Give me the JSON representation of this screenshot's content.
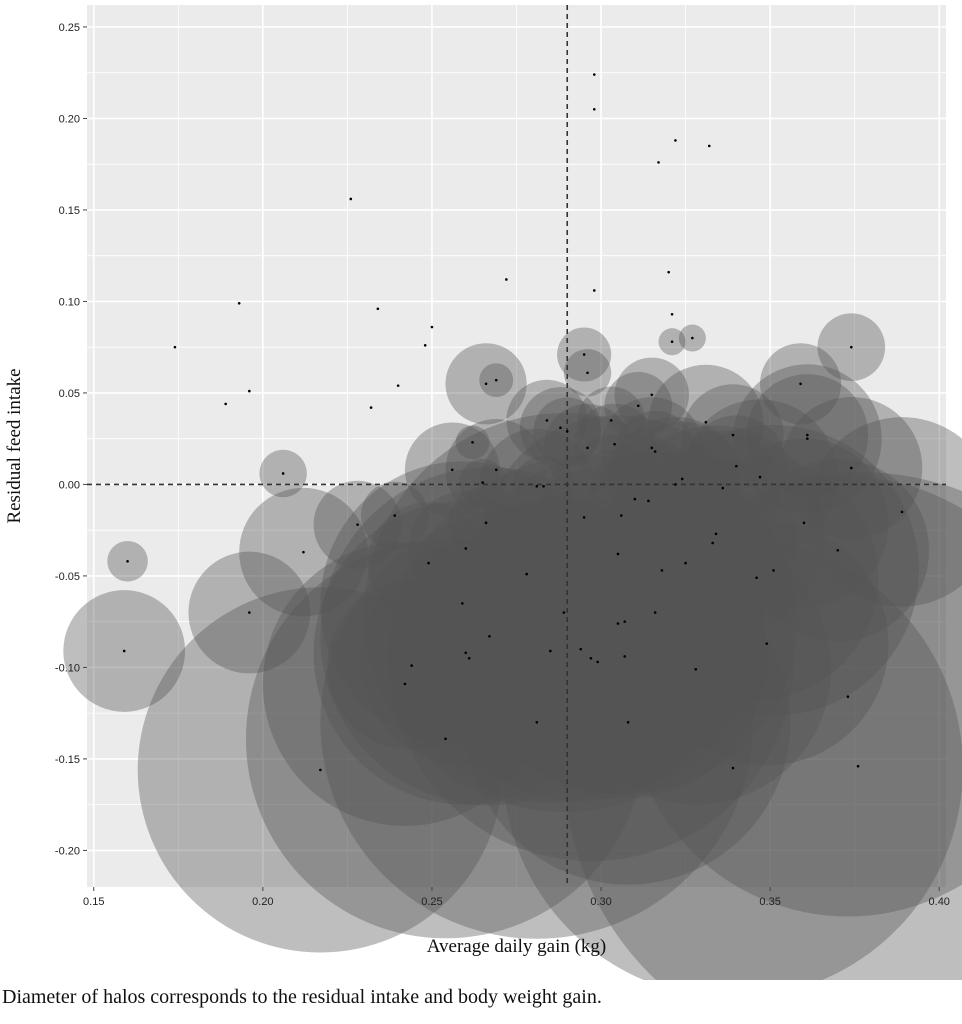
{
  "caption": "Diameter of halos corresponds to the residual intake and body weight gain.",
  "colors": {
    "panel": "#ebebeb",
    "grid": "#ffffff",
    "halo": "#555555",
    "point": "#000000",
    "refline": "#333333"
  },
  "chart_data": {
    "type": "scatter",
    "title": "",
    "xlabel": "Average daily gain (kg)",
    "ylabel": "Residual feed intake",
    "xlim": [
      0.148,
      0.402
    ],
    "ylim": [
      -0.22,
      0.262
    ],
    "xticks": [
      0.15,
      0.2,
      0.25,
      0.3,
      0.35,
      0.4
    ],
    "xtick_labels": [
      "0.15",
      "0.20",
      "0.25",
      "0.30",
      "0.35",
      "0.40"
    ],
    "yticks": [
      0.25,
      0.2,
      0.15,
      0.1,
      0.05,
      0.0,
      -0.05,
      -0.1,
      -0.15,
      -0.2
    ],
    "ytick_labels": [
      "0.25",
      "0.20",
      "0.15",
      "0.10",
      "0.05",
      "0.00",
      "-0.05",
      "-0.10",
      "-0.15",
      "-0.20"
    ],
    "grid": true,
    "reference_lines": {
      "x": 0.29,
      "y": 0.0,
      "style": "dashed"
    },
    "halo_note": "halo diameter encodes the residual intake and body weight gain",
    "points": [
      {
        "x": 0.16,
        "y": -0.042,
        "halo": 0.006
      },
      {
        "x": 0.159,
        "y": -0.091,
        "halo": 0.018
      },
      {
        "x": 0.174,
        "y": 0.075,
        "halo": 0
      },
      {
        "x": 0.189,
        "y": 0.044,
        "halo": 0
      },
      {
        "x": 0.193,
        "y": 0.099,
        "halo": 0
      },
      {
        "x": 0.196,
        "y": 0.051,
        "halo": 0
      },
      {
        "x": 0.196,
        "y": -0.07,
        "halo": 0.018
      },
      {
        "x": 0.206,
        "y": 0.006,
        "halo": 0.007
      },
      {
        "x": 0.212,
        "y": -0.037,
        "halo": 0.019
      },
      {
        "x": 0.217,
        "y": -0.156,
        "halo": 0.054
      },
      {
        "x": 0.226,
        "y": 0.156,
        "halo": 0
      },
      {
        "x": 0.228,
        "y": -0.022,
        "halo": 0.013
      },
      {
        "x": 0.232,
        "y": 0.042,
        "halo": 0
      },
      {
        "x": 0.234,
        "y": 0.096,
        "halo": 0
      },
      {
        "x": 0.239,
        "y": -0.017,
        "halo": 0.01
      },
      {
        "x": 0.24,
        "y": 0.054,
        "halo": 0
      },
      {
        "x": 0.242,
        "y": -0.109,
        "halo": 0.042
      },
      {
        "x": 0.244,
        "y": -0.099,
        "halo": 0.025
      },
      {
        "x": 0.248,
        "y": 0.076,
        "halo": 0
      },
      {
        "x": 0.249,
        "y": -0.043,
        "halo": 0.018
      },
      {
        "x": 0.25,
        "y": 0.086,
        "halo": 0
      },
      {
        "x": 0.254,
        "y": -0.139,
        "halo": 0.059
      },
      {
        "x": 0.256,
        "y": 0.008,
        "halo": 0.014
      },
      {
        "x": 0.259,
        "y": -0.065,
        "halo": 0.042
      },
      {
        "x": 0.26,
        "y": -0.035,
        "halo": 0.017
      },
      {
        "x": 0.26,
        "y": -0.092,
        "halo": 0.045
      },
      {
        "x": 0.261,
        "y": -0.095,
        "halo": 0.032
      },
      {
        "x": 0.262,
        "y": 0.023,
        "halo": 0.005
      },
      {
        "x": 0.265,
        "y": 0.001,
        "halo": 0.007
      },
      {
        "x": 0.266,
        "y": -0.021,
        "halo": 0.011
      },
      {
        "x": 0.266,
        "y": 0.055,
        "halo": 0.012
      },
      {
        "x": 0.267,
        "y": -0.083,
        "halo": 0.05
      },
      {
        "x": 0.269,
        "y": 0.057,
        "halo": 0.005
      },
      {
        "x": 0.269,
        "y": 0.008,
        "halo": 0.015
      },
      {
        "x": 0.272,
        "y": 0.112,
        "halo": 0
      },
      {
        "x": 0.278,
        "y": -0.049,
        "halo": 0.018
      },
      {
        "x": 0.281,
        "y": -0.13,
        "halo": 0.064
      },
      {
        "x": 0.281,
        "y": -0.001,
        "halo": 0.017
      },
      {
        "x": 0.283,
        "y": -0.001,
        "halo": 0.009
      },
      {
        "x": 0.284,
        "y": 0.035,
        "halo": 0.012
      },
      {
        "x": 0.285,
        "y": -0.091,
        "halo": 0.045
      },
      {
        "x": 0.288,
        "y": 0.031,
        "halo": 0.012
      },
      {
        "x": 0.289,
        "y": -0.07,
        "halo": 0.059
      },
      {
        "x": 0.29,
        "y": 0.029,
        "halo": 0.01
      },
      {
        "x": 0.294,
        "y": -0.09,
        "halo": 0.045
      },
      {
        "x": 0.295,
        "y": -0.018,
        "halo": 0.014
      },
      {
        "x": 0.295,
        "y": 0.071,
        "halo": 0.008
      },
      {
        "x": 0.296,
        "y": 0.061,
        "halo": 0.007
      },
      {
        "x": 0.296,
        "y": 0.02,
        "halo": 0.013
      },
      {
        "x": 0.297,
        "y": -0.095,
        "halo": 0.06
      },
      {
        "x": 0.298,
        "y": 0.224,
        "halo": 0
      },
      {
        "x": 0.298,
        "y": 0.205,
        "halo": 0
      },
      {
        "x": 0.298,
        "y": 0.106,
        "halo": 0
      },
      {
        "x": 0.299,
        "y": -0.097,
        "halo": 0.035
      },
      {
        "x": 0.303,
        "y": 0.035,
        "halo": 0.01
      },
      {
        "x": 0.304,
        "y": 0.022,
        "halo": 0.012
      },
      {
        "x": 0.305,
        "y": -0.038,
        "halo": 0.041
      },
      {
        "x": 0.305,
        "y": -0.076,
        "halo": 0.042
      },
      {
        "x": 0.306,
        "y": -0.017,
        "halo": 0.024
      },
      {
        "x": 0.307,
        "y": -0.075,
        "halo": 0.051
      },
      {
        "x": 0.307,
        "y": -0.094,
        "halo": 0.042
      },
      {
        "x": 0.308,
        "y": -0.13,
        "halo": 0.048
      },
      {
        "x": 0.31,
        "y": -0.008,
        "halo": 0.013
      },
      {
        "x": 0.311,
        "y": 0.043,
        "halo": 0.01
      },
      {
        "x": 0.314,
        "y": -0.009,
        "halo": 0.018
      },
      {
        "x": 0.315,
        "y": 0.049,
        "halo": 0.011
      },
      {
        "x": 0.315,
        "y": 0.02,
        "halo": 0.015
      },
      {
        "x": 0.316,
        "y": 0.018,
        "halo": 0.012
      },
      {
        "x": 0.316,
        "y": -0.07,
        "halo": 0.029
      },
      {
        "x": 0.317,
        "y": 0.176,
        "halo": 0
      },
      {
        "x": 0.318,
        "y": -0.047,
        "halo": 0.02
      },
      {
        "x": 0.32,
        "y": 0.116,
        "halo": 0
      },
      {
        "x": 0.321,
        "y": 0.093,
        "halo": 0
      },
      {
        "x": 0.321,
        "y": 0.078,
        "halo": 0.004
      },
      {
        "x": 0.322,
        "y": 0.188,
        "halo": 0
      },
      {
        "x": 0.322,
        "y": 0.0,
        "halo": 0.02
      },
      {
        "x": 0.324,
        "y": 0.003,
        "halo": 0.017
      },
      {
        "x": 0.325,
        "y": -0.043,
        "halo": 0.025
      },
      {
        "x": 0.327,
        "y": 0.08,
        "halo": 0.004
      },
      {
        "x": 0.328,
        "y": -0.101,
        "halo": 0.04
      },
      {
        "x": 0.331,
        "y": 0.034,
        "halo": 0.017
      },
      {
        "x": 0.332,
        "y": 0.185,
        "halo": 0
      },
      {
        "x": 0.333,
        "y": -0.032,
        "halo": 0.025
      },
      {
        "x": 0.334,
        "y": -0.027,
        "halo": 0.032
      },
      {
        "x": 0.336,
        "y": -0.002,
        "halo": 0.017
      },
      {
        "x": 0.339,
        "y": 0.027,
        "halo": 0.015
      },
      {
        "x": 0.339,
        "y": -0.155,
        "halo": 0.068
      },
      {
        "x": 0.34,
        "y": 0.01,
        "halo": 0.015
      },
      {
        "x": 0.346,
        "y": -0.051,
        "halo": 0.036
      },
      {
        "x": 0.347,
        "y": 0.004,
        "halo": 0.023
      },
      {
        "x": 0.349,
        "y": -0.087,
        "halo": 0.036
      },
      {
        "x": 0.351,
        "y": -0.047,
        "halo": 0.043
      },
      {
        "x": 0.359,
        "y": 0.055,
        "halo": 0.012
      },
      {
        "x": 0.36,
        "y": -0.021,
        "halo": 0.025
      },
      {
        "x": 0.361,
        "y": 0.025,
        "halo": 0.022
      },
      {
        "x": 0.361,
        "y": 0.027,
        "halo": 0.018
      },
      {
        "x": 0.37,
        "y": -0.036,
        "halo": 0.027
      },
      {
        "x": 0.373,
        "y": -0.116,
        "halo": 0.065
      },
      {
        "x": 0.374,
        "y": 0.009,
        "halo": 0.021
      },
      {
        "x": 0.374,
        "y": 0.075,
        "halo": 0.01
      },
      {
        "x": 0.376,
        "y": -0.154,
        "halo": 0.087
      },
      {
        "x": 0.389,
        "y": -0.015,
        "halo": 0.028
      }
    ]
  }
}
